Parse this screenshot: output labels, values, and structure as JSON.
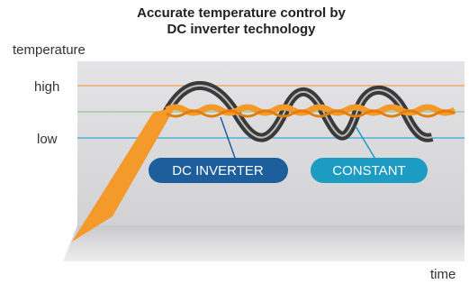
{
  "header": {
    "title_lines": [
      "Accurate temperature control by",
      "DC inverter technology"
    ]
  },
  "axes": {
    "y_label": "temperature",
    "x_label": "time"
  },
  "levels": {
    "high": "high",
    "low": "low"
  },
  "badges": {
    "inverter": "DC INVERTER",
    "constant": "CONSTANT"
  }
}
